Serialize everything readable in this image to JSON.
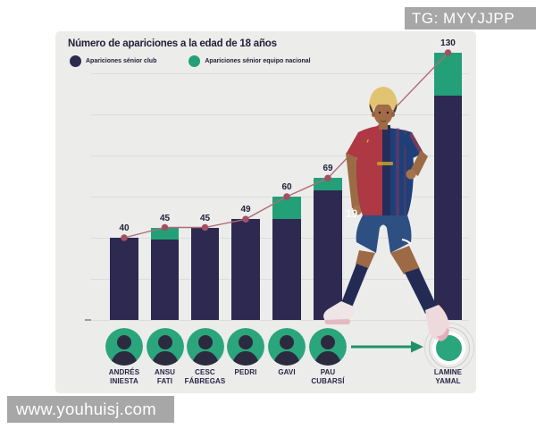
{
  "watermarks": {
    "top_right": "TG: MYYJJPP",
    "bottom_left": "www.youhuisj.com"
  },
  "chart_data": {
    "type": "bar",
    "stacked": true,
    "title": "Número de apariciones a la edad de 18 años",
    "categories": [
      "ANDRÉS INIESTA",
      "ANSU FATI",
      "CESC FÁBREGAS",
      "PEDRI",
      "GAVI",
      "PAU CUBARSÍ",
      "LAMINE YAMAL"
    ],
    "totals": [
      40,
      45,
      45,
      49,
      60,
      69,
      130
    ],
    "series": [
      {
        "name": "Apariciones sénior club",
        "color": "#2e2950",
        "values": [
          40,
          39,
          45,
          49,
          49,
          63,
          109
        ]
      },
      {
        "name": "Apariciones sénior equipo nacional",
        "color": "#23a078",
        "values": [
          0,
          6,
          0,
          0,
          11,
          6,
          21
        ]
      }
    ],
    "trendline": {
      "show": true,
      "color": "#b26b7a",
      "dot_color": "#a34f63",
      "values": [
        40,
        45,
        45,
        49,
        60,
        69,
        130
      ]
    },
    "ylim": [
      0,
      130
    ],
    "gridline_step": 20,
    "grid": true,
    "legend_position": "top-left"
  },
  "players": [
    {
      "line1": "ANDRÉS",
      "line2": "INIESTA"
    },
    {
      "line1": "ANSU",
      "line2": "FATI"
    },
    {
      "line1": "CESC",
      "line2": "FÁBREGAS"
    },
    {
      "line1": "PEDRI",
      "line2": ""
    },
    {
      "line1": "GAVI",
      "line2": ""
    },
    {
      "line1": "PAU",
      "line2": "CUBARSÍ"
    },
    {
      "line1": "LAMINE",
      "line2": "YAMAL",
      "highlight": true
    }
  ],
  "colors": {
    "card_bg": "#ececeb",
    "gridline": "#dddcdc",
    "bar_club": "#2e2950",
    "bar_national": "#23a078",
    "trend_line": "#b26b7a",
    "trend_dot": "#a34f63",
    "text": "#232038",
    "avatar_bg": "#2aa57c",
    "silhouette": "#2c2a3e",
    "arrow": "#1f9169",
    "watermark_bg": "#a7a7a7",
    "watermark_text": "#ffffff"
  }
}
